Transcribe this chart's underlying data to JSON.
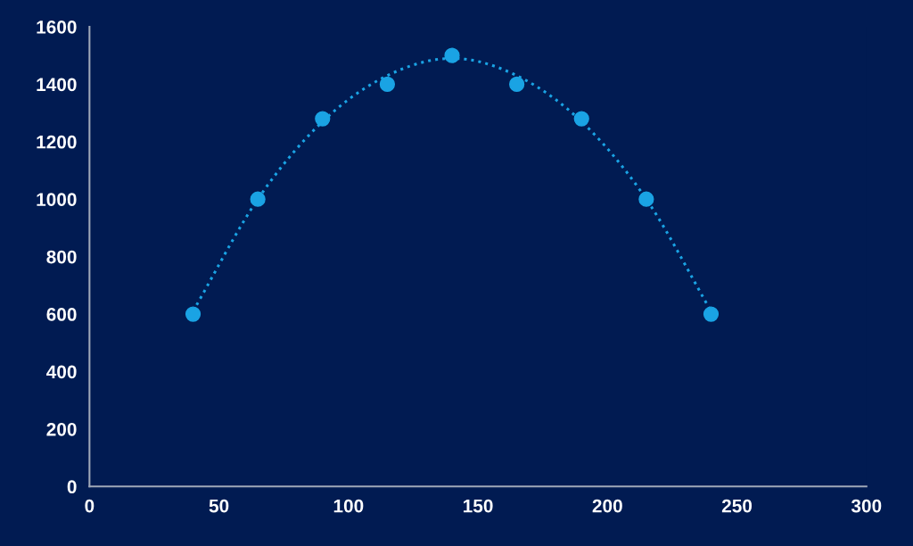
{
  "chart_data": {
    "type": "scatter",
    "xlim": [
      0,
      300
    ],
    "xticks": [
      0,
      50,
      100,
      150,
      200,
      250,
      300
    ],
    "ylim": [
      0,
      1600
    ],
    "yticks": [
      0,
      200,
      400,
      600,
      800,
      1000,
      1200,
      1400,
      1600
    ],
    "grid": false,
    "legend": false,
    "series": [
      {
        "type": "scatter",
        "color": "#1aa3e4",
        "marker": "circle",
        "x": [
          40,
          65,
          90,
          115,
          140,
          165,
          190,
          215,
          240
        ],
        "values": [
          600,
          1000,
          1280,
          1400,
          1500,
          1400,
          1280,
          1000,
          600
        ]
      },
      {
        "type": "line",
        "color": "#1aa3e4",
        "marker": "none",
        "line_style": "dotted",
        "x": [
          40,
          65,
          90,
          115,
          140,
          165,
          190,
          215,
          240
        ],
        "values": [
          610,
          1000,
          1270,
          1430,
          1490,
          1430,
          1270,
          1000,
          610
        ]
      }
    ]
  }
}
